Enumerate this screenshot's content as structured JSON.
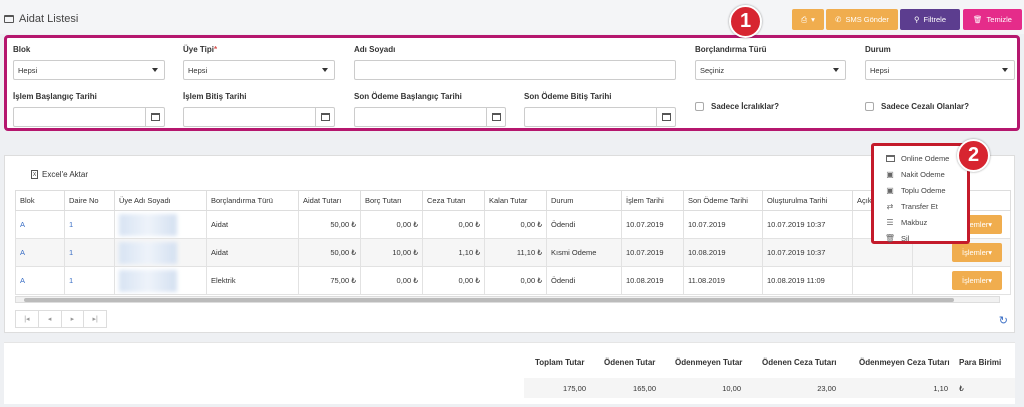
{
  "header": {
    "title": "Aidat Listesi",
    "buttons": {
      "print_caret": "▾",
      "sms": "SMS Gönder",
      "filter": "Filtrele",
      "clear": "Temizle"
    }
  },
  "filters": {
    "blok": {
      "label": "Blok",
      "value": "Hepsi"
    },
    "uye_tipi": {
      "label": "Üye Tipi",
      "required_mark": "*",
      "value": "Hepsi"
    },
    "adi_soyadi": {
      "label": "Adı Soyadı",
      "value": ""
    },
    "borclandirma_turu": {
      "label": "Borçlandırma Türü",
      "value": "Seçiniz"
    },
    "durum": {
      "label": "Durum",
      "value": "Hepsi"
    },
    "islem_baslangic": {
      "label": "İşlem Başlangıç Tarihi",
      "value": ""
    },
    "islem_bitis": {
      "label": "İşlem Bitiş Tarihi",
      "value": ""
    },
    "son_odeme_baslangic": {
      "label": "Son Ödeme Başlangıç Tarihi",
      "value": ""
    },
    "son_odeme_bitis": {
      "label": "Son Ödeme Bitiş Tarihi",
      "value": ""
    },
    "sadece_icralilar": {
      "label": "Sadece İcralıklar?"
    },
    "sadece_cezali": {
      "label": "Sadece Cezalı Olanlar?"
    }
  },
  "badges": {
    "one": "1",
    "two": "2"
  },
  "grid": {
    "export_label": "Excel'e Aktar",
    "columns": [
      "Blok",
      "Daire No",
      "Üye Adı Soyadı",
      "Borçlandırma Türü",
      "Aidat Tutarı",
      "Borç Tutarı",
      "Ceza Tutarı",
      "Kalan Tutar",
      "Durum",
      "İşlem Tarihi",
      "Son Ödeme Tarihi",
      "Oluşturulma Tarihi",
      "Açık",
      "İşlemler"
    ],
    "rows": [
      {
        "blok": "A",
        "daire": "1",
        "tur": "Aidat",
        "aidat": "50,00 ₺",
        "borc": "0,00 ₺",
        "ceza": "0,00 ₺",
        "kalan": "0,00 ₺",
        "durum": "Ödendi",
        "islem": "10.07.2019",
        "son": "10.07.2019",
        "olusturma": "10.07.2019 10:37",
        "action": "İşlemler▾"
      },
      {
        "blok": "A",
        "daire": "1",
        "tur": "Aidat",
        "aidat": "50,00 ₺",
        "borc": "10,00 ₺",
        "ceza": "1,10 ₺",
        "kalan": "11,10 ₺",
        "durum": "Kısmi Odeme",
        "islem": "10.07.2019",
        "son": "10.08.2019",
        "olusturma": "10.07.2019 10:37",
        "action": "İşlemler▾"
      },
      {
        "blok": "A",
        "daire": "1",
        "tur": "Elektrik",
        "aidat": "75,00 ₺",
        "borc": "0,00 ₺",
        "ceza": "0,00 ₺",
        "kalan": "0,00 ₺",
        "durum": "Ödendi",
        "islem": "10.08.2019",
        "son": "11.08.2019",
        "olusturma": "10.08.2019 11:09",
        "action": "İşlemler▾"
      }
    ],
    "pager": {
      "first": "|◂",
      "prev": "◂",
      "next": "▸",
      "last": "▸|"
    }
  },
  "summary": {
    "headers": [
      "Toplam Tutar",
      "Ödenen Tutar",
      "Ödenmeyen Tutar",
      "Ödenen Ceza Tutarı",
      "Ödenmeyen Ceza Tutarı",
      "Para Birimi"
    ],
    "values": [
      "175,00",
      "165,00",
      "10,00",
      "23,00",
      "1,10",
      "₺"
    ]
  },
  "actions_menu": {
    "items": [
      "Online Odeme",
      "Nakit Odeme",
      "Toplu Odeme",
      "Transfer Et",
      "Makbuz",
      "Sil"
    ]
  },
  "colors": {
    "accent_orange": "#f0ad4e",
    "accent_purple": "#5c3d8f",
    "accent_pink": "#e52c8a",
    "highlight": "#b5176e",
    "badge_red": "#d72530"
  }
}
